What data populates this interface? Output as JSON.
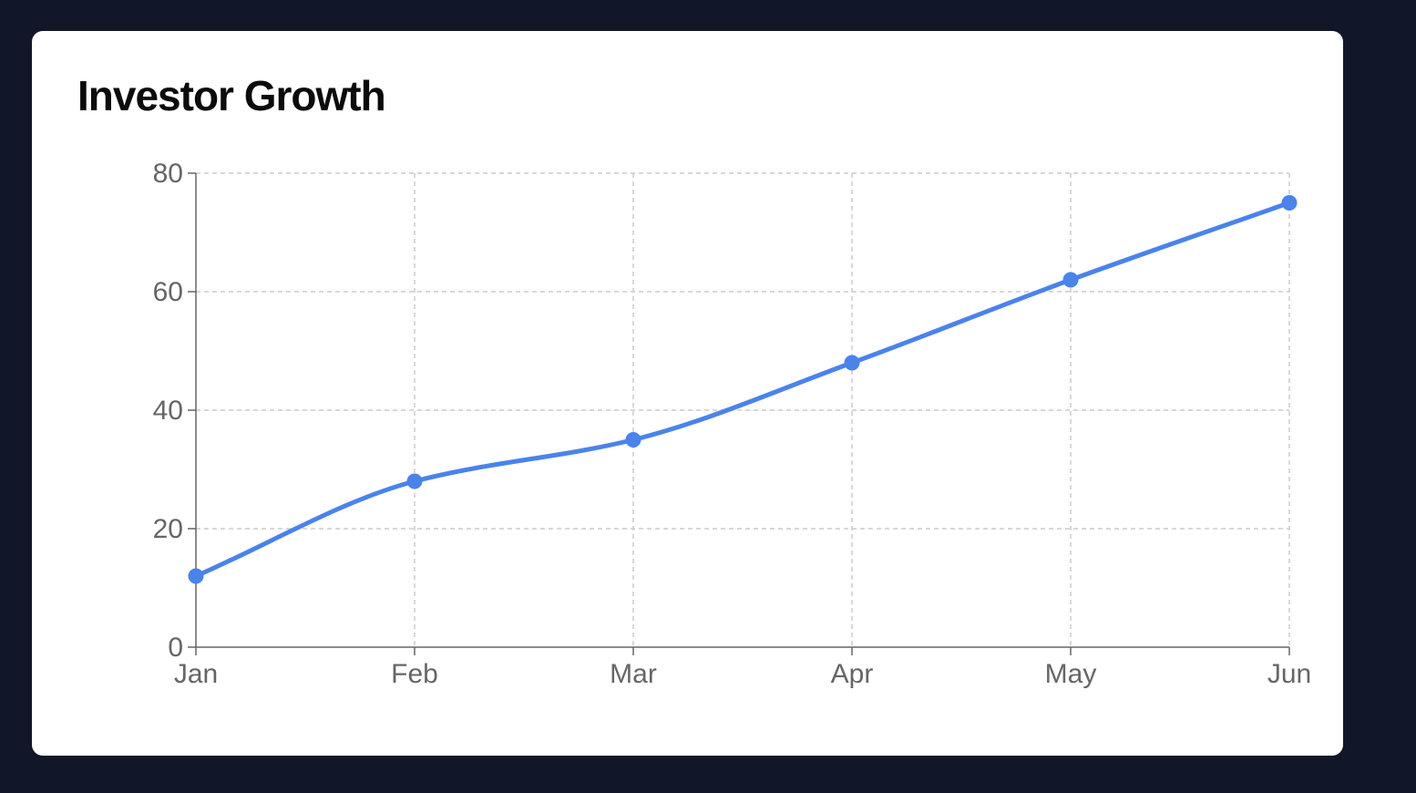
{
  "colors": {
    "background": "#111728",
    "card": "#ffffff",
    "line": "#4a83ea",
    "grid": "#cccccc",
    "axis": "#666666"
  },
  "chart_data": {
    "type": "line",
    "title": "Investor Growth",
    "categories": [
      "Jan",
      "Feb",
      "Mar",
      "Apr",
      "May",
      "Jun"
    ],
    "series": [
      {
        "values": [
          12,
          28,
          35,
          48,
          62,
          75
        ]
      }
    ],
    "ylim": [
      0,
      80
    ],
    "yticks": [
      "0",
      "20",
      "40",
      "60",
      "80"
    ],
    "grid": true,
    "curve": "smooth",
    "legend": "none"
  }
}
